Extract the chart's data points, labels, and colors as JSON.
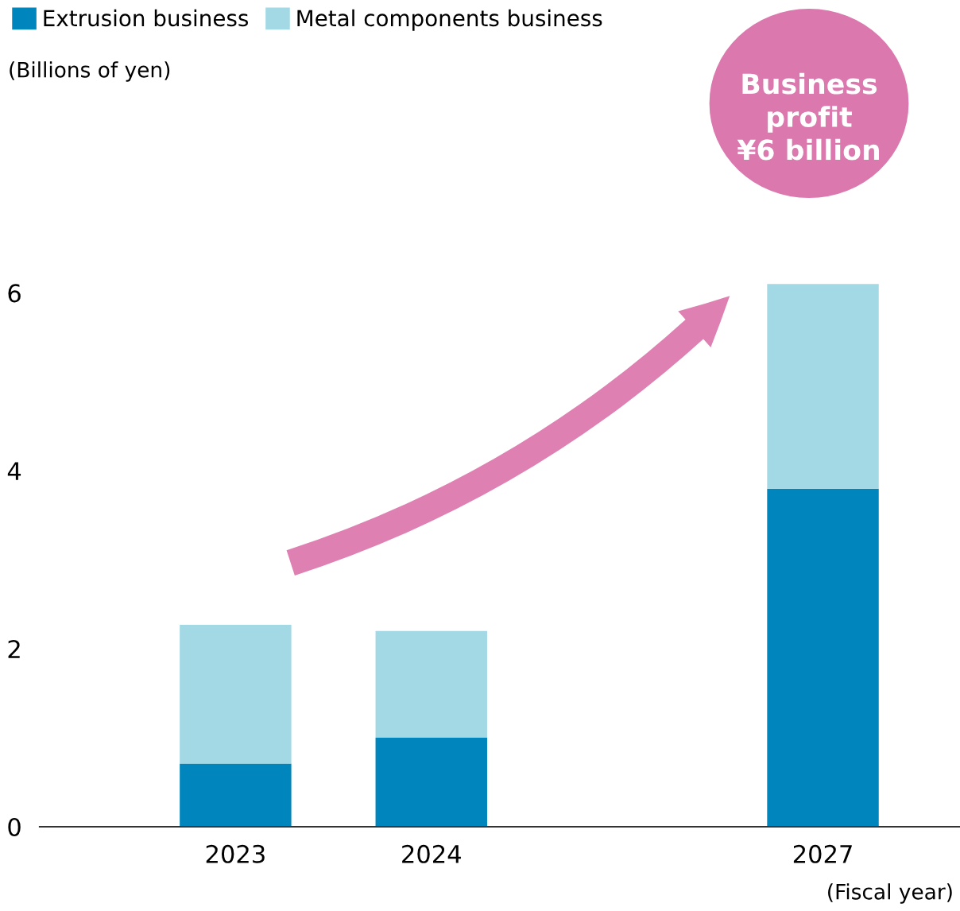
{
  "chart_data": {
    "type": "bar",
    "stacked": true,
    "categories": [
      "2023",
      "2024",
      null,
      "2027"
    ],
    "series": [
      {
        "name": "Extrusion business",
        "color": "#0085bd",
        "values": [
          0.71,
          1.0,
          null,
          3.8
        ]
      },
      {
        "name": "Metal components business",
        "color": "#a3d9e5",
        "values": [
          1.56,
          1.2,
          null,
          2.3
        ]
      }
    ],
    "xlabel": "(Fiscal year)",
    "ylim": [
      0,
      6.2
    ],
    "yticks": [
      0,
      2,
      4,
      6
    ],
    "annotations": [
      "(Billions of yen)",
      "Business\nprofit\n¥6 billion"
    ],
    "legend": "top left",
    "grid": false
  }
}
